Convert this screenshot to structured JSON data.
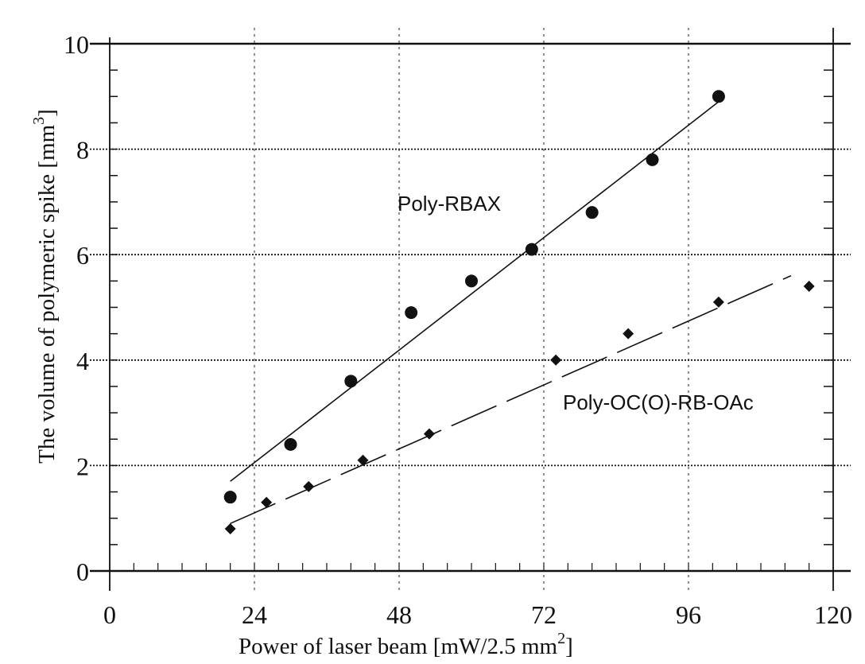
{
  "chart_data": {
    "type": "scatter",
    "title": "",
    "xlabel": "Power of laser beam [mW/2.5 mm",
    "xlabel_sup": "2",
    "xlabel_end": "]",
    "ylabel": "The volume of polymeric spike [mm",
    "ylabel_sup": "3",
    "ylabel_end": "]",
    "xlim": [
      0,
      120
    ],
    "ylim": [
      0,
      10
    ],
    "x_ticks": [
      0,
      24,
      48,
      72,
      96,
      120
    ],
    "y_ticks": [
      0,
      2,
      4,
      6,
      8,
      10
    ],
    "x_tick_labels": [
      "0",
      "24",
      "48",
      "72",
      "96",
      "120"
    ],
    "y_tick_labels": [
      "0",
      "2",
      "4",
      "6",
      "8",
      "10"
    ],
    "grid": "horizontal",
    "series": [
      {
        "name": "Poly-RBAX",
        "marker": "circle",
        "line_style": "solid",
        "x": [
          20,
          30,
          40,
          50,
          60,
          70,
          80,
          90,
          101
        ],
        "y": [
          1.4,
          2.4,
          3.6,
          4.9,
          5.5,
          6.1,
          6.8,
          7.8,
          9.0
        ],
        "fit": {
          "x": [
            20,
            101
          ],
          "y": [
            1.7,
            8.9
          ]
        }
      },
      {
        "name": "Poly-OC(O)-RB-OAc",
        "marker": "diamond",
        "line_style": "dashed",
        "x": [
          20,
          26,
          33,
          42,
          53,
          74,
          86,
          101,
          116
        ],
        "y": [
          0.8,
          1.3,
          1.6,
          2.1,
          2.6,
          4.0,
          4.5,
          5.1,
          5.4
        ],
        "fit": {
          "x": [
            20,
            113
          ],
          "y": [
            0.9,
            5.6
          ]
        }
      }
    ]
  }
}
